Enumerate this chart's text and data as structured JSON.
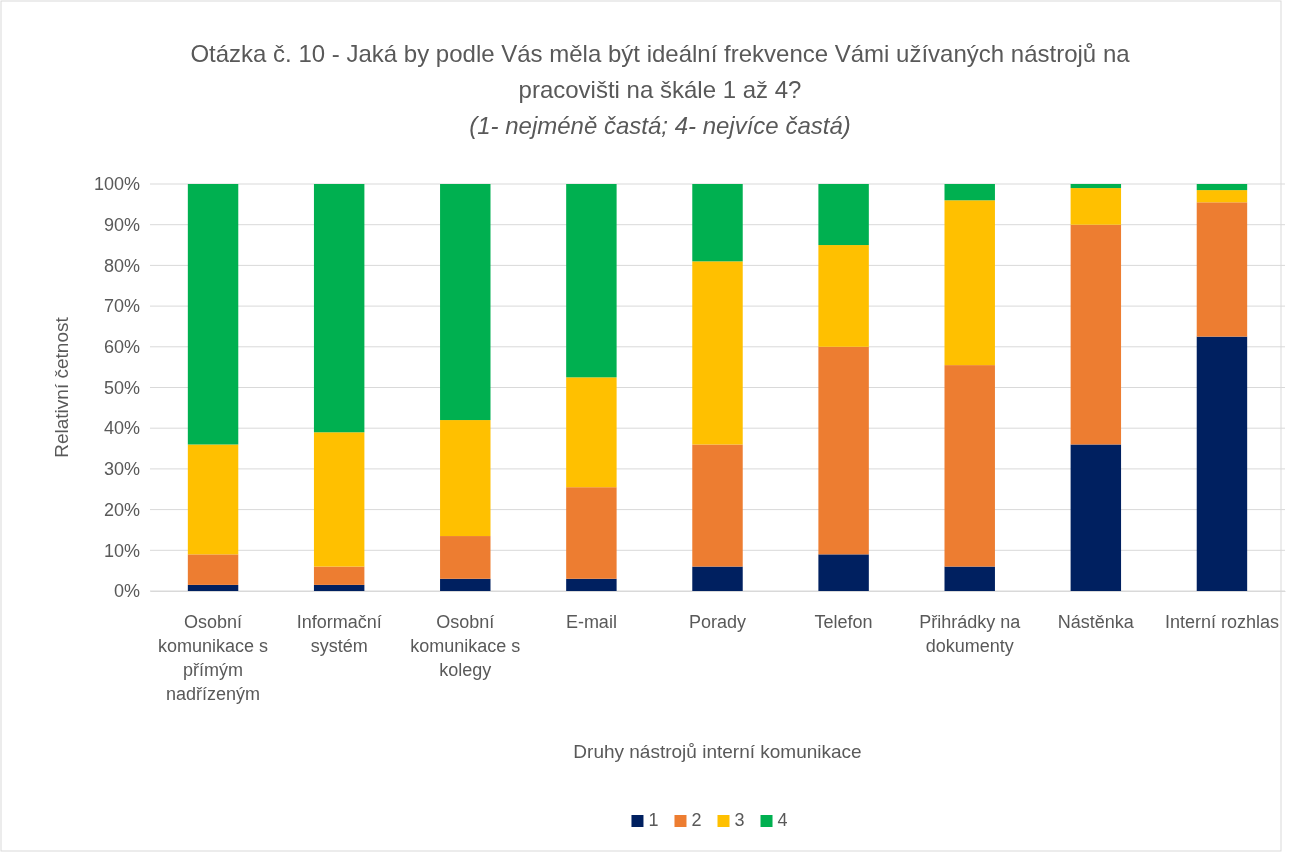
{
  "chart_data": {
    "type": "bar",
    "stacked": true,
    "title": "Otázka č. 10 - Jaká by podle Vás měla být ideální frekvence Vámi užívaných nástrojů na pracovišti na škále 1 až 4?",
    "subtitle": "(1- nejméně častá; 4- nejvíce častá)",
    "xlabel": "Druhy nástrojů interní komunikace",
    "ylabel": "Relativní četnost",
    "categories": [
      "Osobní komunikace s přímým nadřízeným",
      "Informační systém",
      "Osobní komunikace s kolegy",
      "E-mail",
      "Porady",
      "Telefon",
      "Přihrádky na dokumenty",
      "Nástěnka",
      "Interní rozhlas"
    ],
    "series": [
      {
        "name": "1",
        "color": "#002060",
        "values": [
          1.5,
          1.5,
          3,
          3,
          6,
          9,
          6,
          36,
          62.5
        ]
      },
      {
        "name": "2",
        "color": "#ed7d31",
        "values": [
          7.5,
          4.5,
          10.5,
          22.5,
          30,
          51,
          49.5,
          54,
          33
        ]
      },
      {
        "name": "3",
        "color": "#ffc000",
        "values": [
          27,
          33,
          28.5,
          27,
          45,
          25,
          40.5,
          9,
          3
        ]
      },
      {
        "name": "4",
        "color": "#00b050",
        "values": [
          64,
          61,
          58,
          47.5,
          19,
          15,
          4,
          1,
          1.5
        ]
      }
    ],
    "ylim": [
      0,
      100
    ],
    "yticks": [
      {
        "value": 0,
        "label": "0%"
      },
      {
        "value": 10,
        "label": "10%"
      },
      {
        "value": 20,
        "label": "20%"
      },
      {
        "value": 30,
        "label": "30%"
      },
      {
        "value": 40,
        "label": "40%"
      },
      {
        "value": 50,
        "label": "50%"
      },
      {
        "value": 60,
        "label": "60%"
      },
      {
        "value": 70,
        "label": "70%"
      },
      {
        "value": 80,
        "label": "80%"
      },
      {
        "value": 90,
        "label": "90%"
      },
      {
        "value": 100,
        "label": "100%"
      }
    ],
    "grid": "y",
    "legend": "bottom"
  }
}
